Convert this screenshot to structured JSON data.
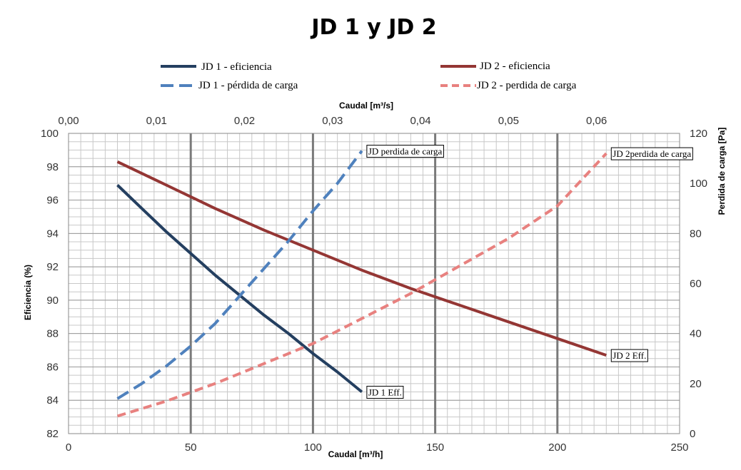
{
  "chart_data": {
    "type": "line",
    "title": "JD 1 y JD 2",
    "legend": {
      "placement": "top",
      "entries": [
        {
          "label": "JD 1 - eficiencia",
          "series": "jd1_eff"
        },
        {
          "label": "JD 2 - eficiencia",
          "series": "jd2_eff"
        },
        {
          "label": "JD 1 - pérdida de carga",
          "series": "jd1_loss"
        },
        {
          "label": "JD 2 - perdida de carga",
          "series": "jd2_loss"
        }
      ]
    },
    "x_axis": {
      "label": "Caudal [m³/h]",
      "min": 0,
      "max": 250,
      "ticks": [
        0,
        50,
        100,
        150,
        200,
        250
      ]
    },
    "x2_axis": {
      "label": "Caudal [m³/s]",
      "min": 0,
      "max": 0.069444,
      "ticks": [
        "0,00",
        "0,01",
        "0,02",
        "0,03",
        "0,04",
        "0,05",
        "0,06"
      ],
      "tick_values": [
        0,
        0.01,
        0.02,
        0.03,
        0.04,
        0.05,
        0.06
      ]
    },
    "y_axis": {
      "label": "Eficiencia (%)",
      "min": 82,
      "max": 100,
      "ticks": [
        82,
        84,
        86,
        88,
        90,
        92,
        94,
        96,
        98,
        100
      ]
    },
    "y2_axis": {
      "label": "Perdida de carga [Pa]",
      "min": 0,
      "max": 120,
      "ticks": [
        0,
        20,
        40,
        60,
        80,
        100,
        120
      ]
    },
    "grid": true,
    "series": [
      {
        "id": "jd1_eff",
        "axis": "y",
        "style": "solid",
        "color": "#243f60",
        "label": "JD 1 Eff.",
        "x": [
          20,
          30,
          40,
          50,
          60,
          70,
          80,
          90,
          100,
          110,
          120
        ],
        "y": [
          96.9,
          95.5,
          94.1,
          92.8,
          91.5,
          90.3,
          89.1,
          88.0,
          86.8,
          85.7,
          84.5
        ]
      },
      {
        "id": "jd2_eff",
        "axis": "y",
        "style": "solid",
        "color": "#943634",
        "label": "JD 2 Eff.",
        "x": [
          20,
          40,
          60,
          80,
          100,
          120,
          140,
          160,
          180,
          200,
          220
        ],
        "y": [
          98.3,
          96.9,
          95.5,
          94.2,
          93.0,
          91.8,
          90.7,
          89.7,
          88.7,
          87.7,
          86.7
        ]
      },
      {
        "id": "jd1_loss",
        "axis": "y2",
        "style": "dashed",
        "color": "#4f81bd",
        "label": "JD  perdida de carga",
        "x": [
          20,
          30,
          40,
          50,
          60,
          70,
          80,
          90,
          100,
          110,
          120
        ],
        "y": [
          14,
          20,
          27,
          35,
          44,
          55,
          66,
          77,
          89,
          100,
          113
        ]
      },
      {
        "id": "jd2_loss",
        "axis": "y2",
        "style": "dashed",
        "color": "#e8817f",
        "label": "JD 2perdida de carga",
        "x": [
          20,
          40,
          60,
          80,
          100,
          120,
          140,
          160,
          180,
          200,
          220
        ],
        "y": [
          7,
          13,
          20,
          28,
          36,
          46,
          56,
          67,
          78,
          91,
          112
        ]
      }
    ]
  }
}
